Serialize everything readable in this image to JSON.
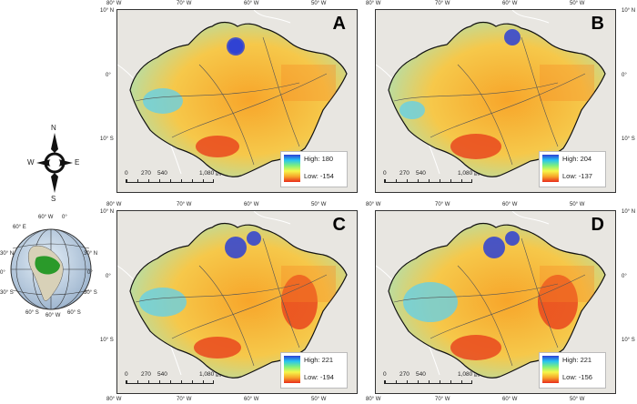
{
  "compass": {
    "n": "N",
    "s": "S",
    "e": "E",
    "w": "W"
  },
  "globe": {
    "lat_labels_left": [
      "30° N",
      "0°",
      "30° S"
    ],
    "lat_labels_right": [
      "30° N",
      "0°",
      "30° S"
    ],
    "lon_labels_top": [
      "60° W",
      "0°"
    ],
    "lon_labels_bottom": [
      "60° S",
      "60° W",
      "60° S"
    ],
    "lon_left_top": "60° E",
    "lon_left_bottom": "60° S"
  },
  "axes": {
    "lon_labels": [
      "80° W",
      "70° W",
      "60° W",
      "50° W"
    ],
    "lat_labels": [
      "10° N",
      "0°",
      "10° S"
    ]
  },
  "scalebar": {
    "labels": [
      "0",
      "270",
      "540",
      "1,080"
    ],
    "unit": "km"
  },
  "panels": [
    {
      "label": "A",
      "high": "High: 180",
      "low": "Low: -154"
    },
    {
      "label": "B",
      "high": "High: 204",
      "low": "Low: -137"
    },
    {
      "label": "C",
      "high": "High: 221",
      "low": "Low: -194"
    },
    {
      "label": "D",
      "high": "High: 221",
      "low": "Low: -156"
    }
  ],
  "colors": {
    "ramp_high": "#2c3fd6",
    "ramp_mid": "#f6f64a",
    "ramp_low": "#e82d1c",
    "land_bg": "#e8e6e1",
    "basin_green": "#2a9a2a"
  }
}
